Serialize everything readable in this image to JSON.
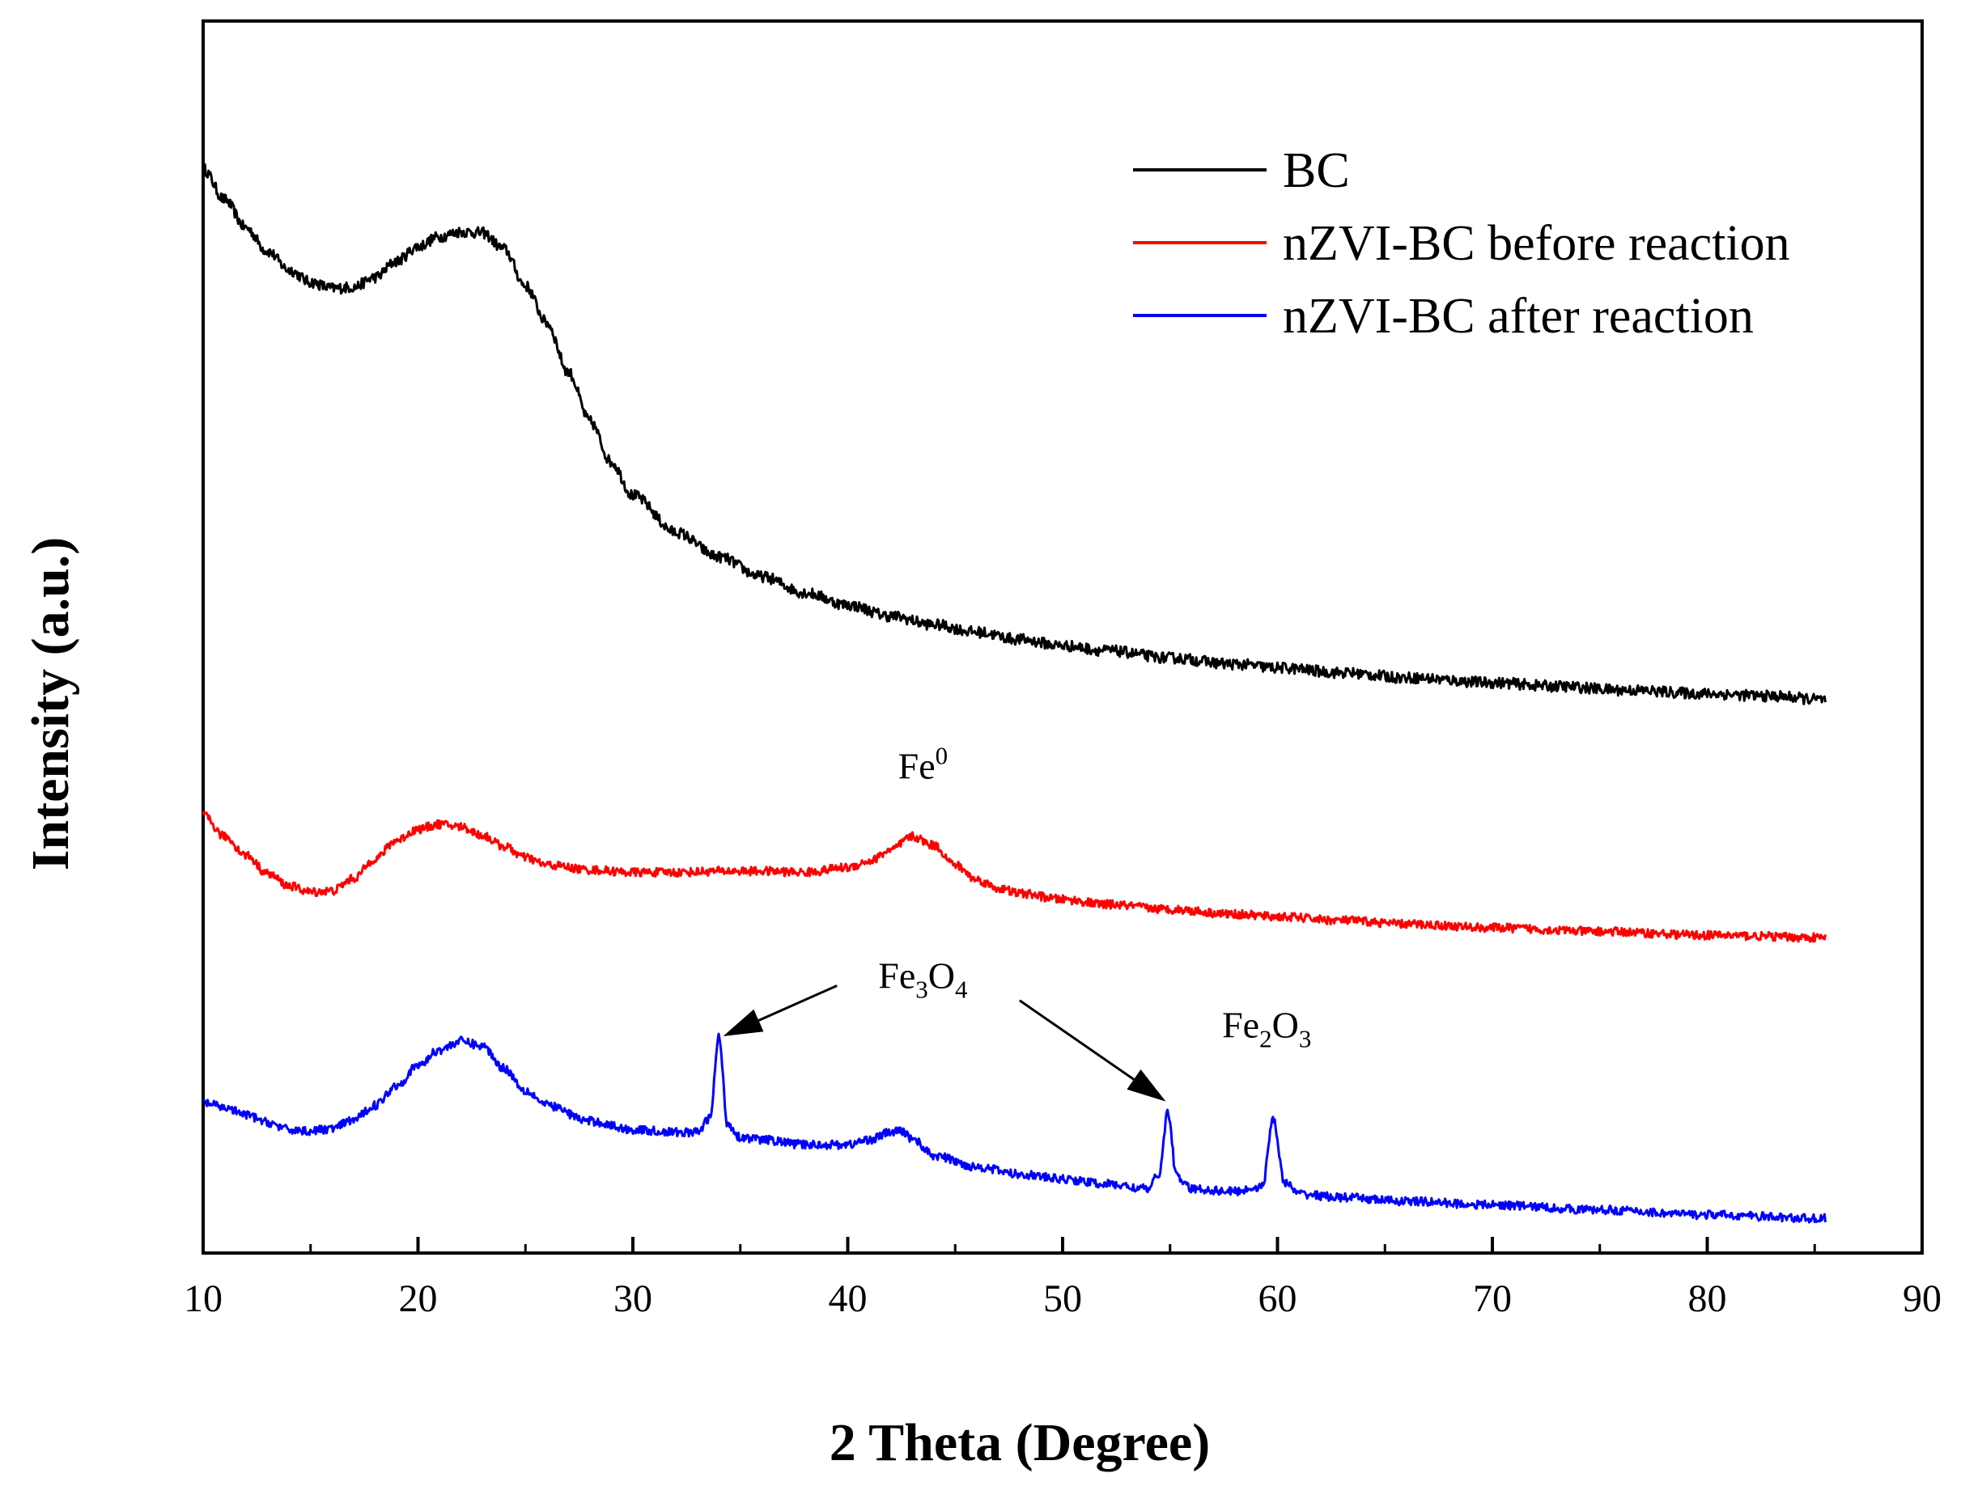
{
  "chart_data": {
    "type": "line",
    "title": "",
    "xlabel": "2 Theta (Degree)",
    "ylabel": "Intensity (a.u.)",
    "xlim": [
      10,
      90
    ],
    "ylim": [
      0,
      100
    ],
    "xticks": [
      10,
      20,
      30,
      40,
      50,
      60,
      70,
      80,
      90
    ],
    "yticks": [],
    "grid": false,
    "legend_position": "top-right",
    "series": [
      {
        "name": "BC",
        "color": "#000000",
        "x": [
          10,
          11,
          12,
          13,
          14,
          15,
          16,
          17,
          18,
          19,
          20,
          21,
          22,
          23,
          24,
          25,
          26,
          27,
          28,
          29,
          30,
          32,
          34,
          36,
          38,
          40,
          42,
          44,
          46,
          48,
          50,
          52,
          55,
          58,
          60,
          63,
          66,
          70,
          73,
          76,
          80,
          83,
          85.5
        ],
        "y": [
          88,
          85.5,
          83.2,
          81.3,
          79.8,
          78.8,
          78.3,
          78.4,
          79.2,
          80.5,
          81.7,
          82.5,
          82.9,
          82.8,
          81.5,
          78.5,
          75.5,
          71.5,
          67.5,
          64.2,
          61.5,
          58.5,
          56.5,
          54.9,
          53.6,
          52.6,
          51.7,
          51.0,
          50.4,
          49.8,
          49.3,
          48.9,
          48.3,
          47.8,
          47.5,
          47.1,
          46.7,
          46.3,
          46.0,
          45.7,
          45.4,
          45.2,
          44.9
        ],
        "noise": 0.45
      },
      {
        "name": "nZVI-BC before reaction",
        "color": "#ff0000",
        "x": [
          10,
          11,
          12,
          13,
          14,
          15,
          16,
          17,
          18,
          19,
          20,
          21,
          22,
          23,
          24,
          25,
          26,
          28,
          30,
          32,
          34,
          36,
          38,
          40,
          41,
          42,
          43,
          44,
          45,
          46,
          47,
          48,
          50,
          52,
          55,
          58,
          60,
          63,
          66,
          70,
          75,
          80,
          85.5
        ],
        "y": [
          35.5,
          33.8,
          32.3,
          30.8,
          29.8,
          29.3,
          29.4,
          30.4,
          32.0,
          33.5,
          34.4,
          34.8,
          34.6,
          33.9,
          33.0,
          32.1,
          31.5,
          31.1,
          30.9,
          30.9,
          31.0,
          31.0,
          30.9,
          31.3,
          31.8,
          32.7,
          33.8,
          33.1,
          31.5,
          30.3,
          29.6,
          29.2,
          28.7,
          28.3,
          27.9,
          27.5,
          27.3,
          27.0,
          26.7,
          26.4,
          26.1,
          25.8,
          25.6
        ],
        "noise": 0.35
      },
      {
        "name": "nZVI-BC after reaction",
        "color": "#0000ff",
        "x": [
          10,
          11,
          12,
          13,
          14,
          15,
          16,
          17,
          18,
          19,
          20,
          21,
          22,
          23,
          24,
          25,
          26,
          28,
          30,
          32,
          33,
          33.6,
          34.0,
          34.4,
          35,
          36,
          38,
          40,
          41,
          42,
          42.5,
          43,
          44,
          46,
          48,
          50,
          52,
          54,
          54.5,
          54.9,
          55.3,
          56,
          58,
          59.3,
          59.8,
          60.3,
          61,
          63,
          66,
          70,
          75,
          80,
          85.5
        ],
        "y": [
          12.2,
          11.8,
          11.2,
          10.6,
          10.0,
          9.9,
          10.1,
          10.8,
          12.0,
          13.6,
          15.2,
          16.5,
          17.2,
          16.8,
          15.0,
          13.2,
          12.0,
          10.7,
          10.0,
          9.8,
          9.8,
          11.0,
          17.6,
          10.5,
          9.4,
          9.2,
          8.8,
          8.8,
          9.2,
          9.8,
          9.9,
          9.3,
          7.9,
          7.0,
          6.4,
          6.0,
          5.6,
          5.2,
          6.5,
          11.5,
          6.2,
          5.2,
          5.0,
          5.4,
          11.0,
          5.8,
          4.8,
          4.5,
          4.2,
          3.9,
          3.5,
          3.1,
          2.8
        ],
        "noise": 0.35
      }
    ],
    "annotations": [
      {
        "base": "Fe",
        "sup": "0",
        "x": 43.5,
        "y": 38.5
      },
      {
        "base": "Fe",
        "sub1": "3",
        "mid": "O",
        "sub2": "4",
        "x": 43.5,
        "y": 21.5
      },
      {
        "base": "Fe",
        "sub1": "2",
        "mid": "O",
        "sub2": "3",
        "x": 59.5,
        "y": 17.5
      }
    ],
    "arrows": [
      {
        "from_x": 39.5,
        "from_y": 21.7,
        "to_x": 34.2,
        "to_y": 17.6
      },
      {
        "from_x": 48.0,
        "from_y": 20.5,
        "to_x": 54.8,
        "to_y": 12.3
      }
    ]
  }
}
